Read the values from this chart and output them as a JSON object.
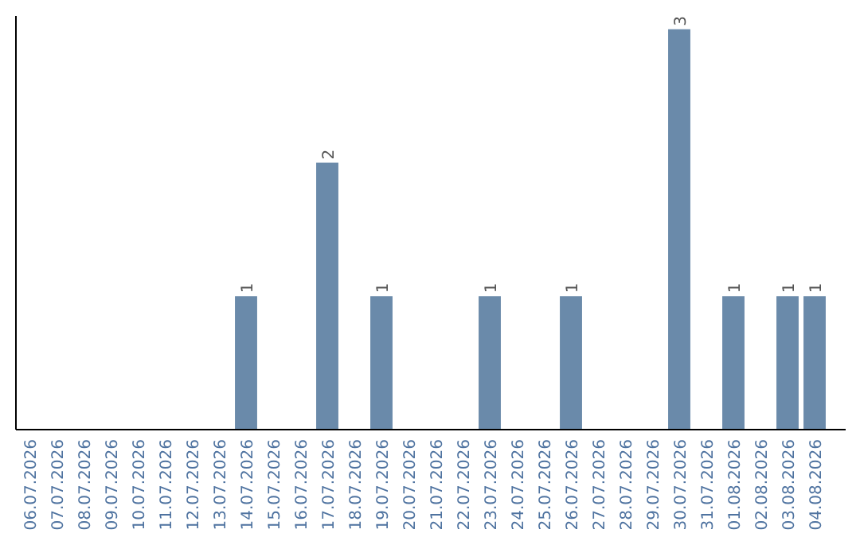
{
  "chart_data": {
    "type": "bar",
    "categories": [
      "06.07.2026",
      "07.07.2026",
      "08.07.2026",
      "09.07.2026",
      "10.07.2026",
      "11.07.2026",
      "12.07.2026",
      "13.07.2026",
      "14.07.2026",
      "15.07.2026",
      "16.07.2026",
      "17.07.2026",
      "18.07.2026",
      "19.07.2026",
      "20.07.2026",
      "21.07.2026",
      "22.07.2026",
      "23.07.2026",
      "24.07.2026",
      "25.07.2026",
      "26.07.2026",
      "27.07.2026",
      "28.07.2026",
      "29.07.2026",
      "30.07.2026",
      "31.07.2026",
      "01.08.2026",
      "02.08.2026",
      "03.08.2026",
      "04.08.2026"
    ],
    "values": [
      null,
      null,
      null,
      null,
      null,
      null,
      null,
      null,
      1,
      null,
      null,
      2,
      null,
      1,
      null,
      null,
      null,
      1,
      null,
      null,
      1,
      null,
      null,
      null,
      3,
      null,
      1,
      null,
      1,
      1
    ],
    "color": "#6a8aaa",
    "ylim": [
      0,
      3.1
    ],
    "data_labels": true,
    "tick_labels": "x"
  }
}
